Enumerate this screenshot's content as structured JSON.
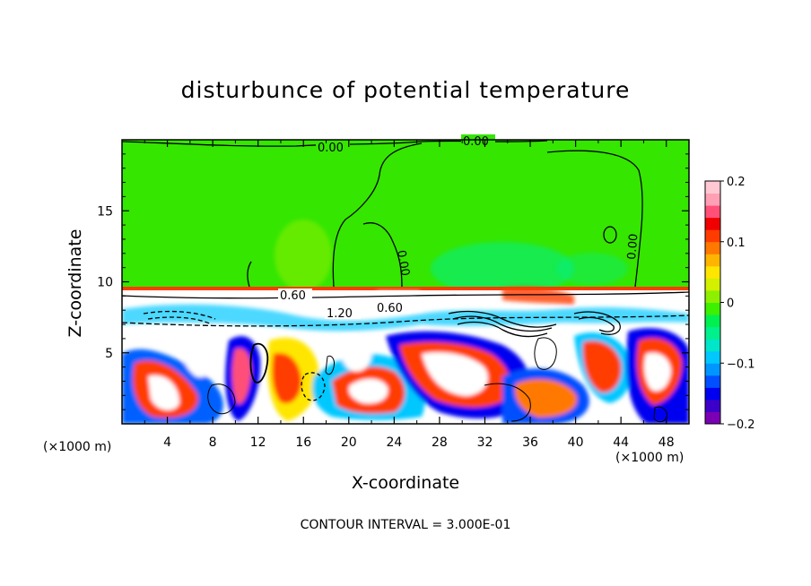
{
  "chart_data": {
    "type": "heatmap",
    "title": "disturbunce of potential temperature",
    "xlabel": "X-coordinate",
    "ylabel": "Z-coordinate",
    "x_unit_label": "(×1000 m)",
    "x_ticks": [
      "4",
      "8",
      "12",
      "16",
      "20",
      "24",
      "28",
      "32",
      "36",
      "40",
      "44",
      "48"
    ],
    "y_ticks": [
      "5",
      "10",
      "15"
    ],
    "xlim": [
      0,
      50
    ],
    "ylim": [
      0,
      20
    ],
    "colorbar": {
      "ticks": [
        "0.2",
        "0.1",
        "0",
        "−0.1",
        "−0.2"
      ],
      "range": [
        -0.2,
        0.2
      ],
      "colors": [
        "#7b00b4",
        "#3c00c8",
        "#0000f0",
        "#0050ff",
        "#0096ff",
        "#00c8ff",
        "#00e6c8",
        "#00f08c",
        "#00f050",
        "#3cf000",
        "#8cf000",
        "#d2f000",
        "#ffe600",
        "#ffb400",
        "#ff7800",
        "#ff3c00",
        "#f00000",
        "#ff5078",
        "#ffa0b4",
        "#ffc8d2"
      ]
    },
    "contour_labels": [
      "0.00",
      "0.00",
      "0.00",
      "0.00",
      "0.60",
      "1.20",
      "0.60"
    ],
    "contour_interval_text": "CONTOUR INTERVAL = 3.000E-01",
    "field_regions": [
      {
        "x": [
          0,
          50
        ],
        "z": [
          9.7,
          20
        ],
        "value": 0.0
      },
      {
        "x": [
          14,
          19
        ],
        "z": [
          10,
          13
        ],
        "value": 0.02
      },
      {
        "x": [
          29,
          37
        ],
        "z": [
          10,
          12.5
        ],
        "value": -0.02
      },
      {
        "x": [
          0,
          50
        ],
        "z": [
          0,
          9.7
        ],
        "value": "mixed"
      }
    ]
  }
}
